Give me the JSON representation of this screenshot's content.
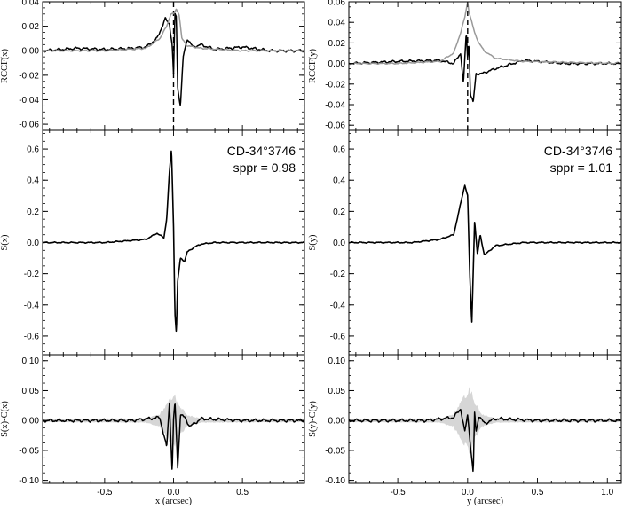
{
  "chart_data": [
    {
      "type": "line",
      "panel": "left-top",
      "ylabel": "RCCF(x)",
      "xlim": [
        -0.95,
        0.95
      ],
      "ylim": [
        -0.065,
        0.04
      ],
      "yticks": [
        "0.04",
        "0.02",
        "0.00",
        "-0.02",
        "-0.04",
        "-0.06"
      ],
      "vline_x": 0,
      "series": [
        {
          "color": "#000000",
          "x": [
            -0.95,
            -0.7,
            -0.5,
            -0.3,
            -0.2,
            -0.12,
            -0.06,
            -0.03,
            -0.01,
            0.0,
            0.01,
            0.02,
            0.03,
            0.05,
            0.07,
            0.1,
            0.14,
            0.2,
            0.3,
            0.5,
            0.7,
            0.95
          ],
          "y": [
            0.0,
            0.002,
            0.001,
            0.002,
            0.003,
            0.01,
            0.026,
            0.022,
            0.005,
            -0.02,
            0.03,
            0.028,
            -0.03,
            -0.045,
            -0.005,
            0.01,
            0.003,
            0.005,
            0.001,
            0.003,
            0.0,
            0.0
          ]
        },
        {
          "color": "#999999",
          "x": [
            -0.95,
            -0.5,
            -0.2,
            -0.1,
            -0.05,
            -0.02,
            0.0,
            0.02,
            0.04,
            0.06,
            0.1,
            0.2,
            0.5,
            0.95
          ],
          "y": [
            0.0,
            0.0,
            0.002,
            0.01,
            0.02,
            0.03,
            0.03,
            0.034,
            0.03,
            0.01,
            0.004,
            0.002,
            0.0,
            0.0
          ]
        }
      ]
    },
    {
      "type": "line",
      "panel": "left-middle",
      "ylabel": "S(x)",
      "xlim": [
        -0.95,
        0.95
      ],
      "ylim": [
        -0.72,
        0.72
      ],
      "yticks": [
        "0.6",
        "0.4",
        "0.2",
        "0.0",
        "-0.2",
        "-0.4",
        "-0.6"
      ],
      "annotation": {
        "star": "CD-34°3746",
        "sppr": "sppr = 0.98"
      },
      "series": [
        {
          "color": "#000000",
          "x": [
            -0.95,
            -0.5,
            -0.2,
            -0.12,
            -0.07,
            -0.05,
            -0.03,
            -0.015,
            0.0,
            0.01,
            0.02,
            0.03,
            0.05,
            0.08,
            0.1,
            0.15,
            0.2,
            0.3,
            0.5,
            0.95
          ],
          "y": [
            0.0,
            0.0,
            0.02,
            0.06,
            0.03,
            0.15,
            0.45,
            0.6,
            0.1,
            -0.45,
            -0.58,
            -0.25,
            -0.1,
            -0.12,
            -0.06,
            -0.03,
            -0.01,
            0.0,
            0.0,
            0.0
          ]
        }
      ]
    },
    {
      "type": "line",
      "panel": "left-bottom",
      "ylabel": "S(x)-C(x)",
      "xlabel": "x (arcsec)",
      "xlim": [
        -0.95,
        0.95
      ],
      "ylim": [
        -0.105,
        0.11
      ],
      "yticks": [
        "0.10",
        "0.05",
        "0.00",
        "-0.05",
        "-0.10"
      ],
      "xticks": [
        -0.5,
        0.0,
        0.5
      ],
      "xticklabels": [
        "-0.5",
        "0.0",
        "0.5"
      ],
      "band_half_width": [
        [
          -0.95,
          0.003
        ],
        [
          -0.2,
          0.004
        ],
        [
          -0.1,
          0.012
        ],
        [
          -0.04,
          0.035
        ],
        [
          0.0,
          0.05
        ],
        [
          0.04,
          0.03
        ],
        [
          0.1,
          0.01
        ],
        [
          0.2,
          0.004
        ],
        [
          0.95,
          0.003
        ]
      ],
      "series": [
        {
          "color": "#000000",
          "x": [
            -0.95,
            -0.3,
            -0.1,
            -0.05,
            -0.03,
            -0.01,
            0.0,
            0.01,
            0.02,
            0.03,
            0.05,
            0.08,
            0.12,
            0.2,
            0.5,
            0.95
          ],
          "y": [
            0.0,
            0.0,
            0.005,
            -0.045,
            0.03,
            -0.085,
            0.0,
            0.03,
            -0.02,
            -0.08,
            0.01,
            0.005,
            -0.01,
            0.003,
            0.0,
            0.0
          ]
        }
      ]
    },
    {
      "type": "line",
      "panel": "right-top",
      "ylabel": "RCCF(y)",
      "xlim": [
        -0.85,
        1.1
      ],
      "ylim": [
        -0.065,
        0.06
      ],
      "yticks": [
        "0.06",
        "0.04",
        "0.02",
        "0.00",
        "-0.02",
        "-0.04",
        "-0.06"
      ],
      "vline_x": 0,
      "series": [
        {
          "color": "#000000",
          "x": [
            -0.85,
            -0.5,
            -0.2,
            -0.1,
            -0.05,
            -0.03,
            -0.01,
            0.0,
            0.01,
            0.02,
            0.04,
            0.06,
            0.1,
            0.2,
            0.4,
            0.7,
            1.1
          ],
          "y": [
            0.0,
            0.002,
            0.003,
            0.0,
            0.01,
            -0.02,
            0.03,
            0.005,
            0.02,
            -0.03,
            -0.038,
            -0.01,
            -0.01,
            -0.005,
            0.003,
            0.0,
            0.0
          ]
        },
        {
          "color": "#999999",
          "x": [
            -0.85,
            -0.5,
            -0.2,
            -0.1,
            -0.05,
            -0.02,
            0.0,
            0.01,
            0.03,
            0.05,
            0.08,
            0.12,
            0.2,
            0.4,
            1.1
          ],
          "y": [
            0.0,
            0.0,
            0.002,
            0.01,
            0.03,
            0.045,
            0.06,
            0.05,
            0.04,
            0.03,
            0.02,
            0.012,
            0.005,
            0.002,
            0.0
          ]
        }
      ]
    },
    {
      "type": "line",
      "panel": "right-middle",
      "ylabel": "S(y)",
      "xlim": [
        -0.85,
        1.1
      ],
      "ylim": [
        -0.72,
        0.72
      ],
      "yticks": [
        "0.6",
        "0.4",
        "0.2",
        "0.0",
        "-0.2",
        "-0.4",
        "-0.6"
      ],
      "annotation": {
        "star": "CD-34°3746",
        "sppr": "sppr = 1.01"
      },
      "series": [
        {
          "color": "#000000",
          "x": [
            -0.85,
            -0.4,
            -0.2,
            -0.1,
            -0.05,
            -0.02,
            0.0,
            0.015,
            0.03,
            0.05,
            0.07,
            0.09,
            0.12,
            0.2,
            0.4,
            1.1
          ],
          "y": [
            0.0,
            0.0,
            0.02,
            0.05,
            0.25,
            0.37,
            0.3,
            -0.2,
            -0.52,
            0.14,
            -0.08,
            0.05,
            -0.08,
            -0.02,
            0.0,
            0.0
          ]
        }
      ]
    },
    {
      "type": "line",
      "panel": "right-bottom",
      "ylabel": "S(y)-C(y)",
      "xlabel": "y (arcsec)",
      "xlim": [
        -0.85,
        1.1
      ],
      "ylim": [
        -0.105,
        0.11
      ],
      "yticks": [
        "0.10",
        "0.05",
        "0.00",
        "-0.05",
        "-0.10"
      ],
      "xticks": [
        -0.5,
        0.0,
        0.5,
        1.0
      ],
      "xticklabels": [
        "-0.5",
        "0.0",
        "0.5",
        "1.0"
      ],
      "band_half_width": [
        [
          -0.85,
          0.003
        ],
        [
          -0.2,
          0.004
        ],
        [
          -0.1,
          0.012
        ],
        [
          -0.04,
          0.04
        ],
        [
          0.02,
          0.06
        ],
        [
          0.05,
          0.035
        ],
        [
          0.1,
          0.012
        ],
        [
          0.2,
          0.004
        ],
        [
          1.1,
          0.003
        ]
      ],
      "series": [
        {
          "color": "#000000",
          "x": [
            -0.85,
            -0.3,
            -0.1,
            -0.05,
            -0.02,
            0.0,
            0.02,
            0.04,
            0.05,
            0.06,
            0.08,
            0.12,
            0.2,
            0.5,
            1.1
          ],
          "y": [
            0.0,
            0.0,
            0.005,
            0.02,
            -0.02,
            0.01,
            -0.04,
            -0.09,
            0.015,
            -0.02,
            0.008,
            -0.005,
            0.003,
            0.0,
            0.0
          ]
        }
      ]
    }
  ]
}
